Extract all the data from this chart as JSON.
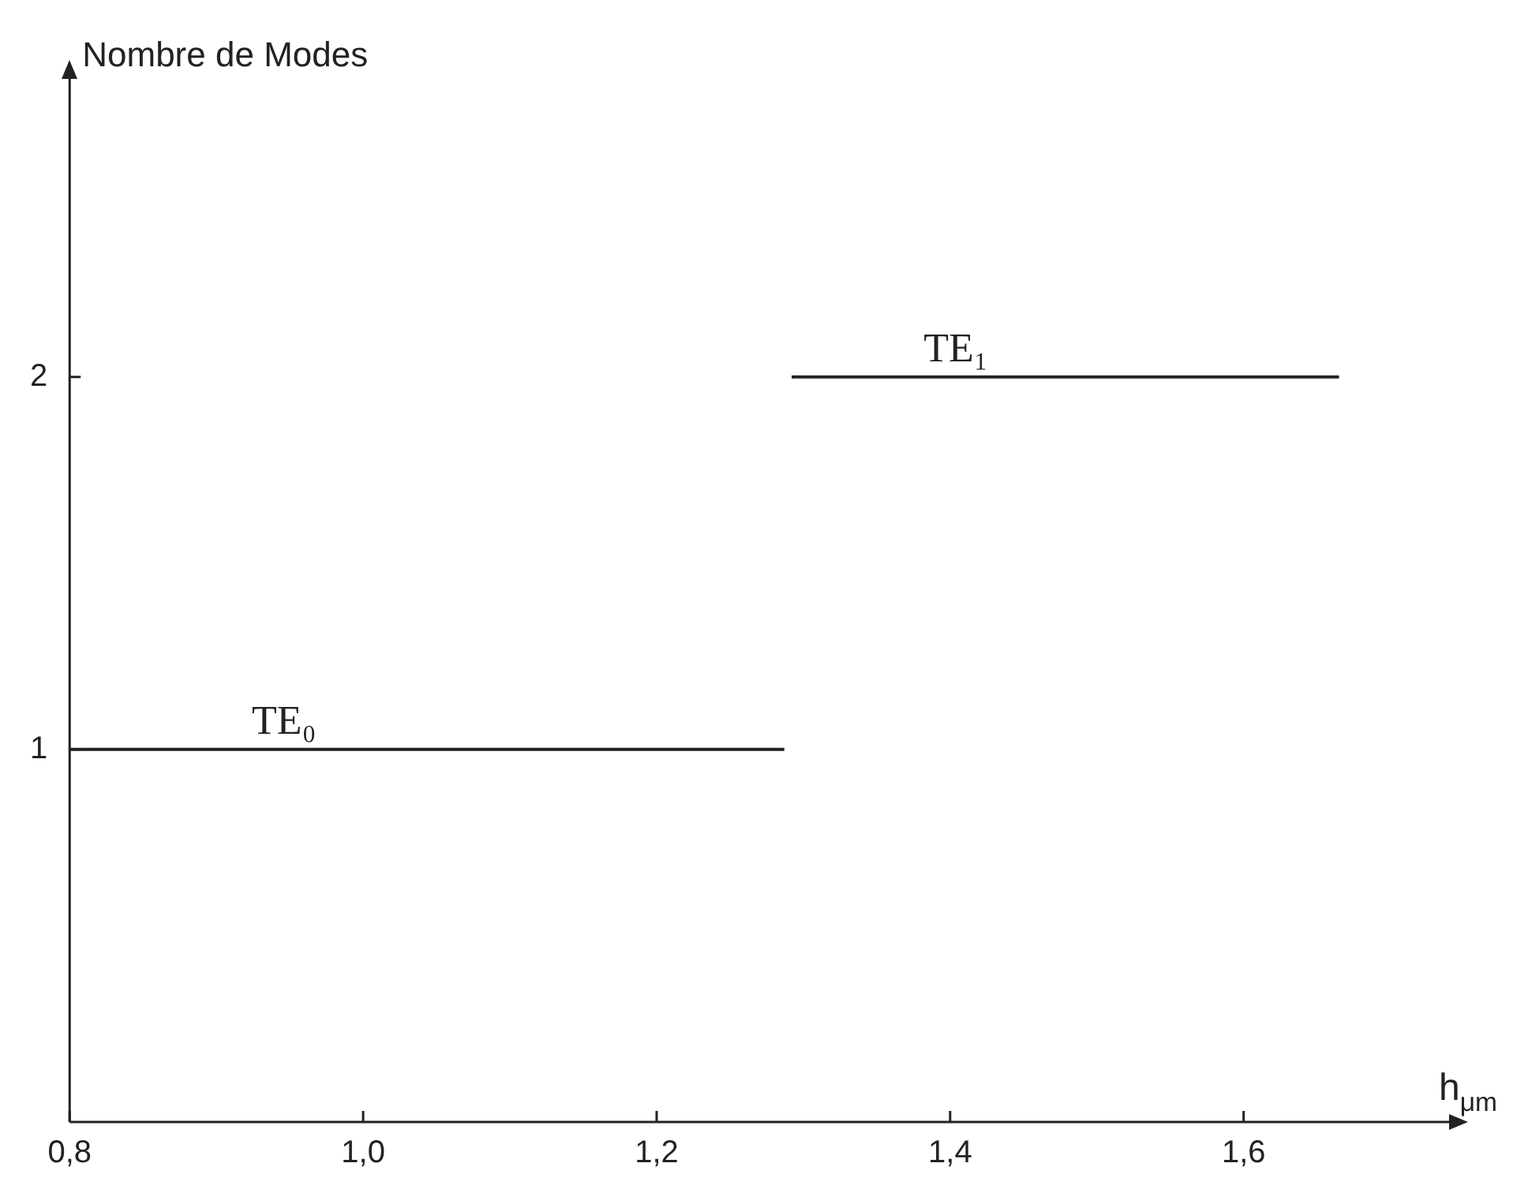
{
  "chart_data": {
    "type": "line",
    "ylabel": "Nombre de Modes",
    "xlabel": "h$_{μm}$",
    "xlim": [
      0.8,
      1.74
    ],
    "xticks": [
      {
        "value": 0.8,
        "label": "0,8"
      },
      {
        "value": 1.0,
        "label": "1,0"
      },
      {
        "value": 1.2,
        "label": "1,2"
      },
      {
        "value": 1.4,
        "label": "1,4"
      },
      {
        "value": 1.6,
        "label": "1,6"
      }
    ],
    "ylim": [
      0,
      2.8
    ],
    "yticks": [
      1,
      2
    ],
    "series": [
      {
        "name": "TE₀",
        "color": "#222222",
        "x": [
          0.8,
          1.287
        ],
        "values": [
          1,
          1
        ]
      },
      {
        "name": "TE₁",
        "color": "#222222",
        "x": [
          1.292,
          1.665
        ],
        "values": [
          2,
          2
        ]
      }
    ],
    "grid": false,
    "legend": false,
    "marker": "none",
    "line_style": "solid"
  }
}
